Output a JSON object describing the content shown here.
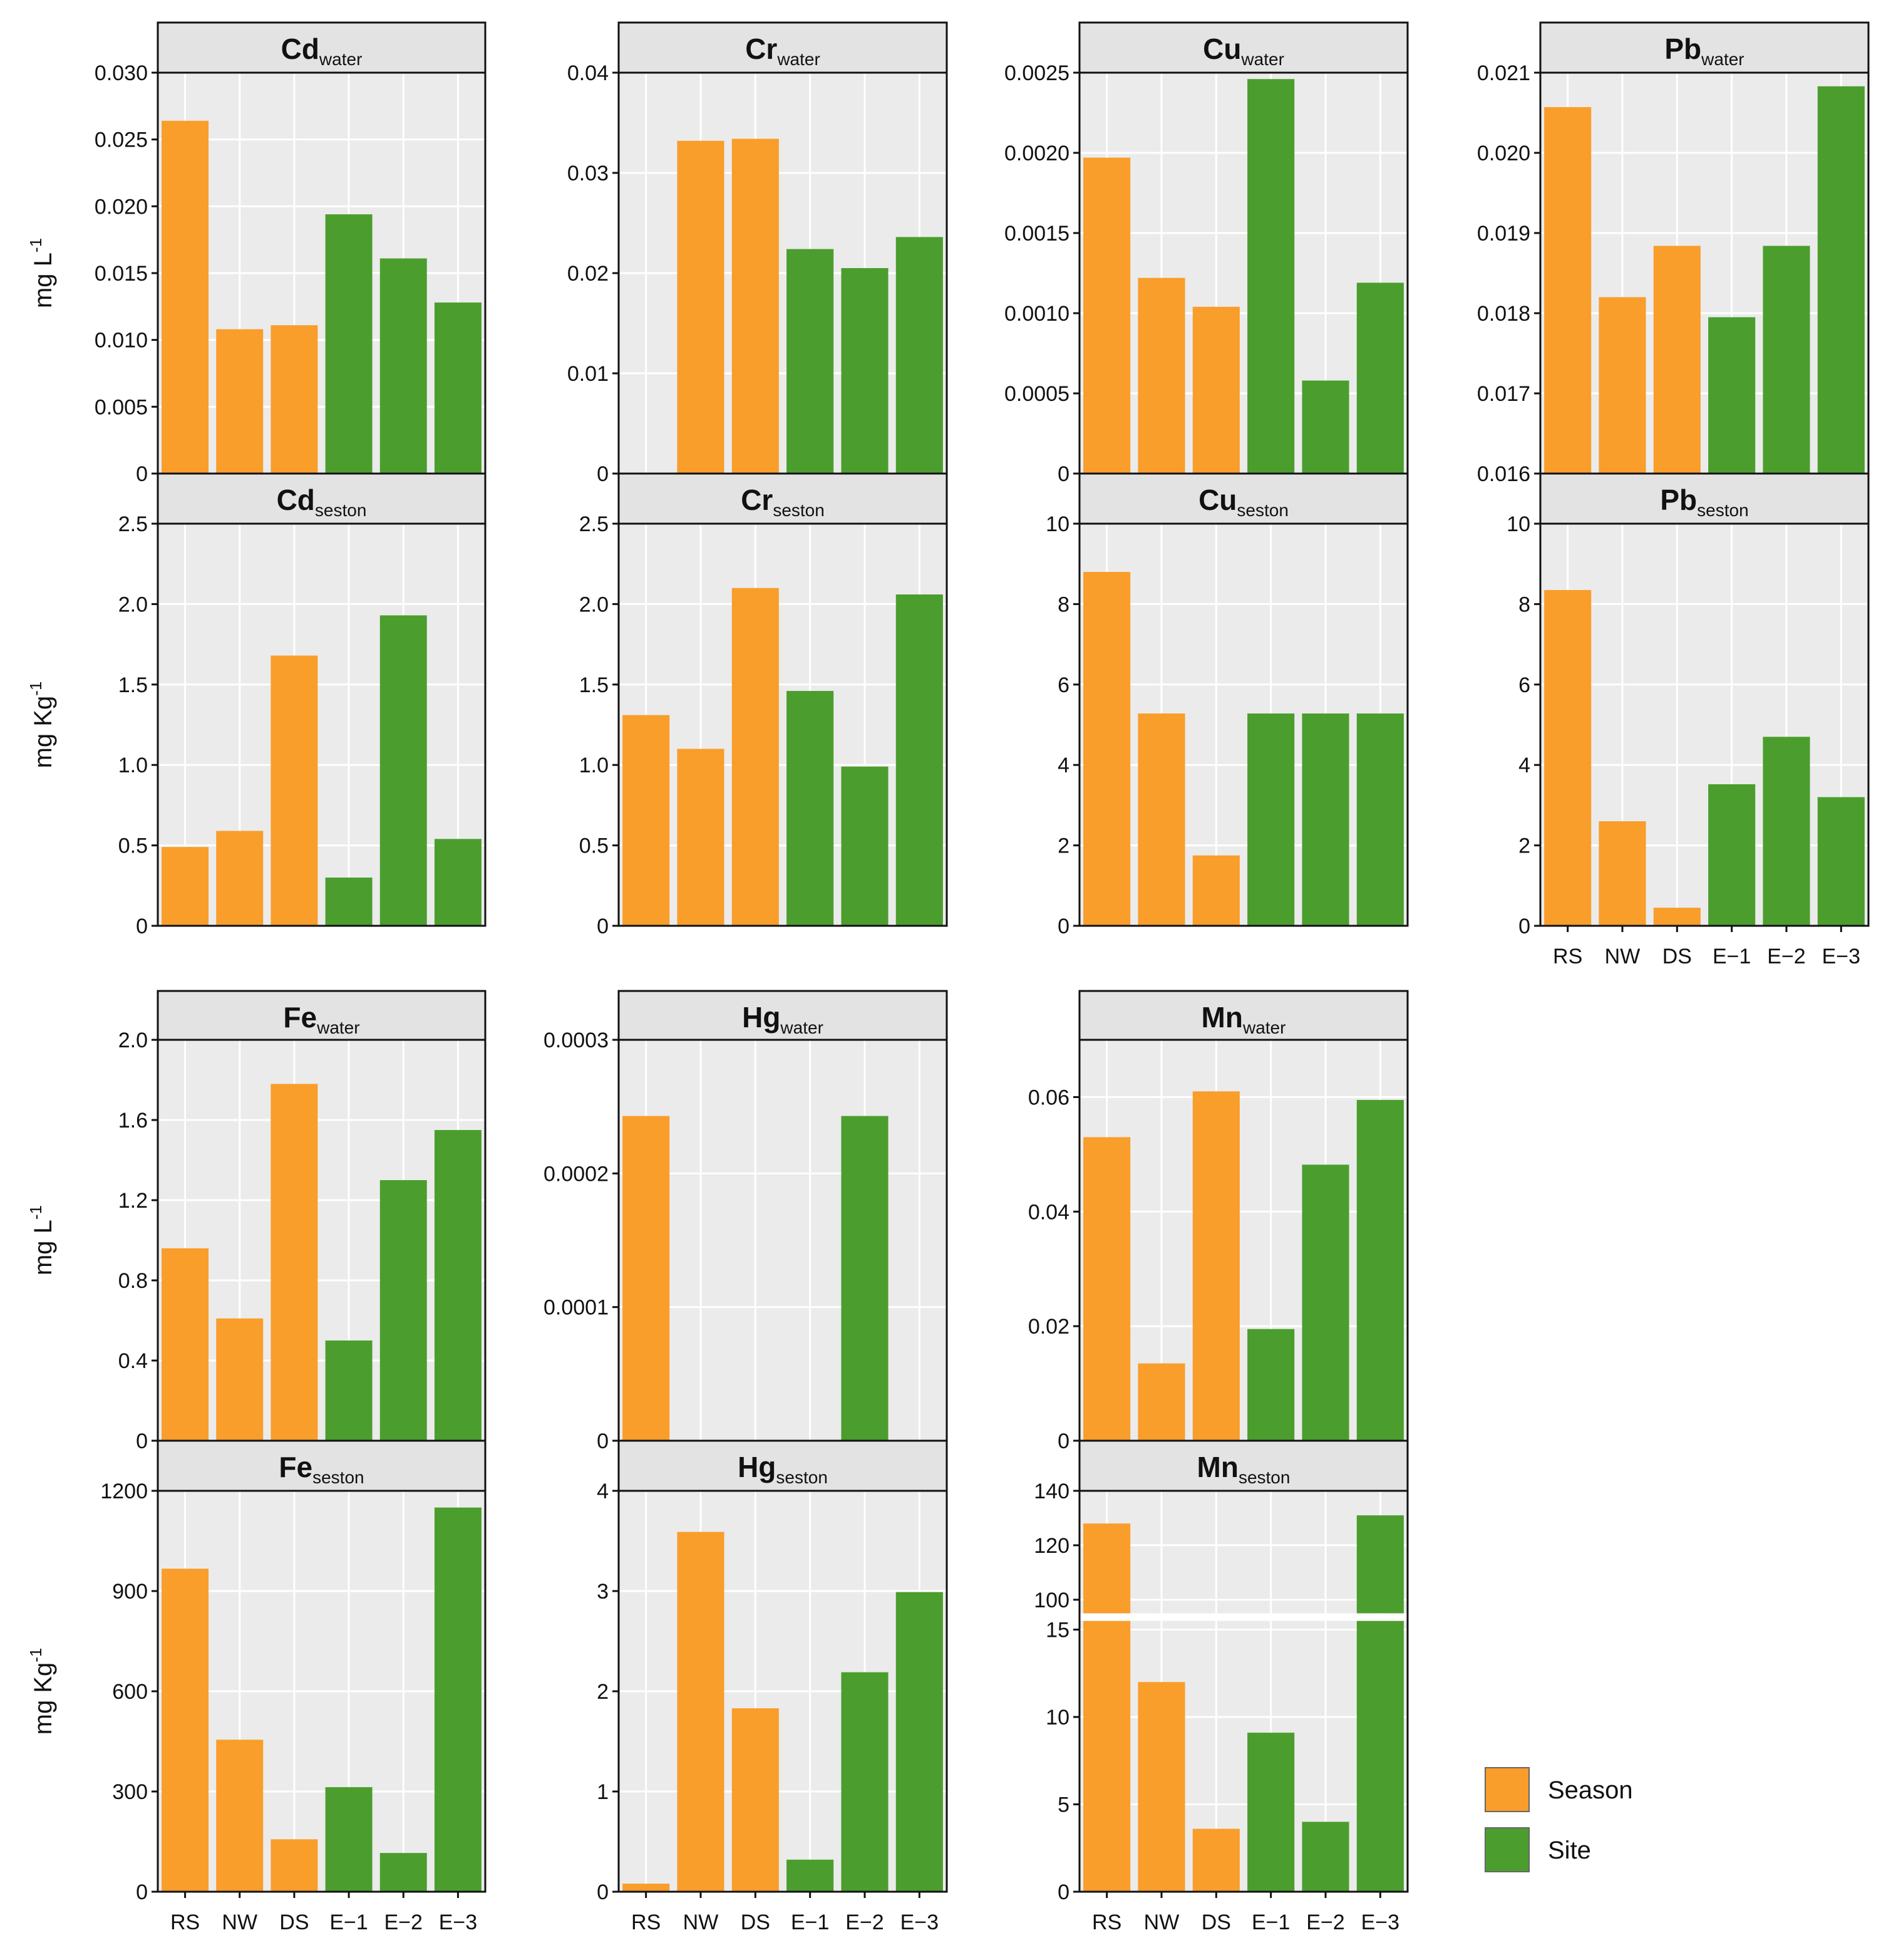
{
  "colors": {
    "season": "#F99D2B",
    "site": "#4B9E2D",
    "panel_bg": "#EBEBEB",
    "strip_bg": "#E3E3E3",
    "grid": "#FFFFFF"
  },
  "legend": [
    {
      "label": "Season",
      "color": "#F99D2B"
    },
    {
      "label": "Site",
      "color": "#4B9E2D"
    }
  ],
  "chart_data": [
    {
      "type": "bar",
      "element": "Cd",
      "subscript": "water",
      "categories": [
        "RS",
        "NW",
        "DS",
        "E−1",
        "E−2",
        "E−3"
      ],
      "groups": [
        "Season",
        "Season",
        "Season",
        "Site",
        "Site",
        "Site"
      ],
      "values": [
        0.0264,
        0.0108,
        0.0111,
        0.0194,
        0.0161,
        0.0128
      ],
      "ylim": [
        0,
        0.03
      ],
      "yticks": [
        0,
        0.005,
        0.01,
        0.015,
        0.02,
        0.025,
        0.03
      ],
      "yticklabels": [
        "0",
        "0.005",
        "0.010",
        "0.015",
        "0.020",
        "0.025",
        "0.030"
      ]
    },
    {
      "type": "bar",
      "element": "Cr",
      "subscript": "water",
      "categories": [
        "RS",
        "NW",
        "DS",
        "E−1",
        "E−2",
        "E−3"
      ],
      "groups": [
        "Season",
        "Season",
        "Season",
        "Site",
        "Site",
        "Site"
      ],
      "values": [
        0,
        0.0332,
        0.0334,
        0.0224,
        0.0205,
        0.0236
      ],
      "ylim": [
        0,
        0.04
      ],
      "yticks": [
        0,
        0.01,
        0.02,
        0.03,
        0.04
      ],
      "yticklabels": [
        "0",
        "0.01",
        "0.02",
        "0.03",
        "0.04"
      ]
    },
    {
      "type": "bar",
      "element": "Cu",
      "subscript": "water",
      "categories": [
        "RS",
        "NW",
        "DS",
        "E−1",
        "E−2",
        "E−3"
      ],
      "groups": [
        "Season",
        "Season",
        "Season",
        "Site",
        "Site",
        "Site"
      ],
      "values": [
        0.00197,
        0.00122,
        0.00104,
        0.00246,
        0.00058,
        0.00119
      ],
      "ylim": [
        0,
        0.0025
      ],
      "yticks": [
        0,
        0.0005,
        0.001,
        0.0015,
        0.002,
        0.0025
      ],
      "yticklabels": [
        "0",
        "0.0005",
        "0.0010",
        "0.0015",
        "0.0020",
        "0.0025"
      ]
    },
    {
      "type": "bar",
      "element": "Pb",
      "subscript": "water",
      "categories": [
        "RS",
        "NW",
        "DS",
        "E−1",
        "E−2",
        "E−3"
      ],
      "groups": [
        "Season",
        "Season",
        "Season",
        "Site",
        "Site",
        "Site"
      ],
      "values": [
        0.02057,
        0.0182,
        0.01884,
        0.01795,
        0.01884,
        0.02083
      ],
      "ylim": [
        0.016,
        0.021
      ],
      "yticks": [
        0.016,
        0.017,
        0.018,
        0.019,
        0.02,
        0.021
      ],
      "yticklabels": [
        "0.016",
        "0.017",
        "0.018",
        "0.019",
        "0.020",
        "0.021"
      ]
    },
    {
      "type": "bar",
      "element": "Cd",
      "subscript": "seston",
      "categories": [
        "RS",
        "NW",
        "DS",
        "E−1",
        "E−2",
        "E−3"
      ],
      "groups": [
        "Season",
        "Season",
        "Season",
        "Site",
        "Site",
        "Site"
      ],
      "values": [
        0.49,
        0.59,
        1.68,
        0.3,
        1.93,
        0.54
      ],
      "ylim": [
        0,
        2.5
      ],
      "yticks": [
        0,
        0.5,
        1,
        1.5,
        2,
        2.5
      ],
      "yticklabels": [
        "0",
        "0.5",
        "1.0",
        "1.5",
        "2.0",
        "2.5"
      ]
    },
    {
      "type": "bar",
      "element": "Cr",
      "subscript": "seston",
      "categories": [
        "RS",
        "NW",
        "DS",
        "E−1",
        "E−2",
        "E−3"
      ],
      "groups": [
        "Season",
        "Season",
        "Season",
        "Site",
        "Site",
        "Site"
      ],
      "values": [
        1.31,
        1.1,
        2.1,
        1.46,
        0.99,
        2.06
      ],
      "ylim": [
        0,
        2.5
      ],
      "yticks": [
        0,
        0.5,
        1,
        1.5,
        2,
        2.5
      ],
      "yticklabels": [
        "0",
        "0.5",
        "1.0",
        "1.5",
        "2.0",
        "2.5"
      ]
    },
    {
      "type": "bar",
      "element": "Cu",
      "subscript": "seston",
      "categories": [
        "RS",
        "NW",
        "DS",
        "E−1",
        "E−2",
        "E−3"
      ],
      "groups": [
        "Season",
        "Season",
        "Season",
        "Site",
        "Site",
        "Site"
      ],
      "values": [
        8.8,
        5.28,
        1.75,
        5.28,
        5.28,
        5.28
      ],
      "ylim": [
        0,
        10
      ],
      "yticks": [
        0,
        2,
        4,
        6,
        8,
        10
      ],
      "yticklabels": [
        "0",
        "2",
        "4",
        "6",
        "8",
        "10"
      ]
    },
    {
      "type": "bar",
      "element": "Pb",
      "subscript": "seston",
      "categories": [
        "RS",
        "NW",
        "DS",
        "E−1",
        "E−2",
        "E−3"
      ],
      "groups": [
        "Season",
        "Season",
        "Season",
        "Site",
        "Site",
        "Site"
      ],
      "values": [
        8.35,
        2.6,
        0.45,
        3.52,
        4.7,
        3.2
      ],
      "ylim": [
        0,
        10
      ],
      "yticks": [
        0,
        2,
        4,
        6,
        8,
        10
      ],
      "yticklabels": [
        "0",
        "2",
        "4",
        "6",
        "8",
        "10"
      ]
    },
    {
      "type": "bar",
      "element": "Fe",
      "subscript": "water",
      "categories": [
        "RS",
        "NW",
        "DS",
        "E−1",
        "E−2",
        "E−3"
      ],
      "groups": [
        "Season",
        "Season",
        "Season",
        "Site",
        "Site",
        "Site"
      ],
      "values": [
        0.96,
        0.61,
        1.78,
        0.5,
        1.3,
        1.55
      ],
      "ylim": [
        0,
        2.0
      ],
      "yticks": [
        0,
        0.4,
        0.8,
        1.2,
        1.6,
        2.0
      ],
      "yticklabels": [
        "0",
        "0.4",
        "0.8",
        "1.2",
        "1.6",
        "2.0"
      ]
    },
    {
      "type": "bar",
      "element": "Hg",
      "subscript": "water",
      "categories": [
        "RS",
        "NW",
        "DS",
        "E−1",
        "E−2",
        "E−3"
      ],
      "groups": [
        "Season",
        "Season",
        "Season",
        "Site",
        "Site",
        "Site"
      ],
      "values": [
        0.000243,
        0,
        0,
        0,
        0.000243,
        0
      ],
      "ylim": [
        0,
        0.0003
      ],
      "yticks": [
        0,
        0.0001,
        0.0002,
        0.0003
      ],
      "yticklabels": [
        "0",
        "0.0001",
        "0.0002",
        "0.0003"
      ]
    },
    {
      "type": "bar",
      "element": "Mn",
      "subscript": "water",
      "categories": [
        "RS",
        "NW",
        "DS",
        "E−1",
        "E−2",
        "E−3"
      ],
      "groups": [
        "Season",
        "Season",
        "Season",
        "Site",
        "Site",
        "Site"
      ],
      "values": [
        0.053,
        0.0135,
        0.061,
        0.0195,
        0.0482,
        0.0595
      ],
      "ylim": [
        0,
        0.07
      ],
      "yticks": [
        0,
        0.02,
        0.04,
        0.06
      ],
      "yticklabels": [
        "0",
        "0.02",
        "0.04",
        "0.06"
      ]
    },
    {
      "type": "bar",
      "element": "Fe",
      "subscript": "seston",
      "categories": [
        "RS",
        "NW",
        "DS",
        "E−1",
        "E−2",
        "E−3"
      ],
      "groups": [
        "Season",
        "Season",
        "Season",
        "Site",
        "Site",
        "Site"
      ],
      "values": [
        967,
        455,
        157,
        313,
        116,
        1150
      ],
      "ylim": [
        0,
        1200
      ],
      "yticks": [
        0,
        300,
        600,
        900,
        1200
      ],
      "yticklabels": [
        "0",
        "300",
        "600",
        "900",
        "1200"
      ]
    },
    {
      "type": "bar",
      "element": "Hg",
      "subscript": "seston",
      "categories": [
        "RS",
        "NW",
        "DS",
        "E−1",
        "E−2",
        "E−3"
      ],
      "groups": [
        "Season",
        "Season",
        "Season",
        "Site",
        "Site",
        "Site"
      ],
      "values": [
        0.08,
        3.59,
        1.83,
        0.32,
        2.19,
        2.99
      ],
      "ylim": [
        0,
        4
      ],
      "yticks": [
        0,
        1,
        2,
        3,
        4
      ],
      "yticklabels": [
        "0",
        "1",
        "2",
        "3",
        "4"
      ]
    },
    {
      "type": "bar",
      "element": "Mn",
      "subscript": "seston",
      "categories": [
        "RS",
        "NW",
        "DS",
        "E−1",
        "E−2",
        "E−3"
      ],
      "groups": [
        "Season",
        "Season",
        "Season",
        "Site",
        "Site",
        "Site"
      ],
      "values": [
        128,
        12,
        3.6,
        9.1,
        4,
        131
      ],
      "axis_break": {
        "lower": [
          0,
          15.5
        ],
        "upper": [
          95,
          140
        ]
      },
      "yticks": [
        0,
        5,
        10,
        15,
        100,
        120,
        140
      ],
      "yticklabels": [
        "0",
        "5",
        "10",
        "15",
        "100",
        "120",
        "140"
      ]
    }
  ],
  "y_axis_labels": [
    {
      "main": "mg L",
      "sup": "-1"
    },
    {
      "main": "mg Kg",
      "sup": "-1"
    },
    {
      "main": "mg L",
      "sup": "-1"
    },
    {
      "main": "mg Kg",
      "sup": "-1"
    }
  ]
}
